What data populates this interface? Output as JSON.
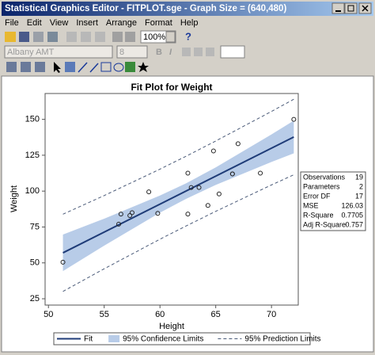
{
  "window": {
    "title": "Statistical Graphics Editor - FITPLOT.sge - Graph Size = (640,480)"
  },
  "menu": [
    "File",
    "Edit",
    "View",
    "Insert",
    "Arrange",
    "Format",
    "Help"
  ],
  "toolbar": {
    "zoom": "100%",
    "help": "?",
    "font": "Albany AMT",
    "font_size": "8",
    "bold": "B",
    "italic": "I"
  },
  "chart_data": {
    "type": "scatter",
    "title": "Fit Plot for Weight",
    "x_label": "Height",
    "y_label": "Weight",
    "xlim": [
      49.7,
      72.4
    ],
    "xticks": [
      50,
      55,
      60,
      65,
      70
    ],
    "ylim": [
      20.6,
      168
    ],
    "yticks": [
      25,
      50,
      75,
      100,
      125,
      150
    ],
    "marker_color": "#222222",
    "x": [
      69,
      56.5,
      65.3,
      62.8,
      63.5,
      57.3,
      59.8,
      62.5,
      62.5,
      59,
      51.3,
      64.3,
      56.3,
      66.5,
      72,
      64.8,
      67,
      57.5,
      66.5
    ],
    "values": [
      112.5,
      84,
      98,
      102.5,
      102.5,
      83,
      84.5,
      112.5,
      84,
      99.5,
      50.5,
      90,
      77,
      112,
      150,
      128,
      133,
      85,
      112
    ],
    "series": [
      {
        "name": "Fit",
        "color": "#1f3c78",
        "x": [
          51.3,
          72
        ],
        "values": [
          57.0,
          137.7
        ]
      },
      {
        "name": "95% Confidence Limits",
        "color": "#b8cce8",
        "x": [
          51.3,
          55,
          60,
          62.34,
          65,
          70,
          72
        ],
        "lower": [
          44.3,
          62.0,
          85.0,
          94.6,
          104.3,
          120.3,
          126.3
        ],
        "upper": [
          69.7,
          80.8,
          96.9,
          105.4,
          116.5,
          139.5,
          149.1
        ]
      },
      {
        "name": "95% Prediction Limits",
        "color": "#4a5a78",
        "x": [
          51.3,
          55,
          60,
          62.34,
          65,
          70,
          72
        ],
        "lower": [
          30.1,
          45.9,
          66.5,
          75.7,
          85.9,
          104.3,
          111.4
        ],
        "upper": [
          83.9,
          96.9,
          115.3,
          124.3,
          134.9,
          155.5,
          164.0
        ]
      }
    ],
    "stats": [
      [
        "Observations",
        19
      ],
      [
        "Parameters",
        2
      ],
      [
        "Error DF",
        17
      ],
      [
        "MSE",
        126.03
      ],
      [
        "R-Square",
        0.7705
      ],
      [
        "Adj R-Square",
        0.757
      ]
    ]
  }
}
